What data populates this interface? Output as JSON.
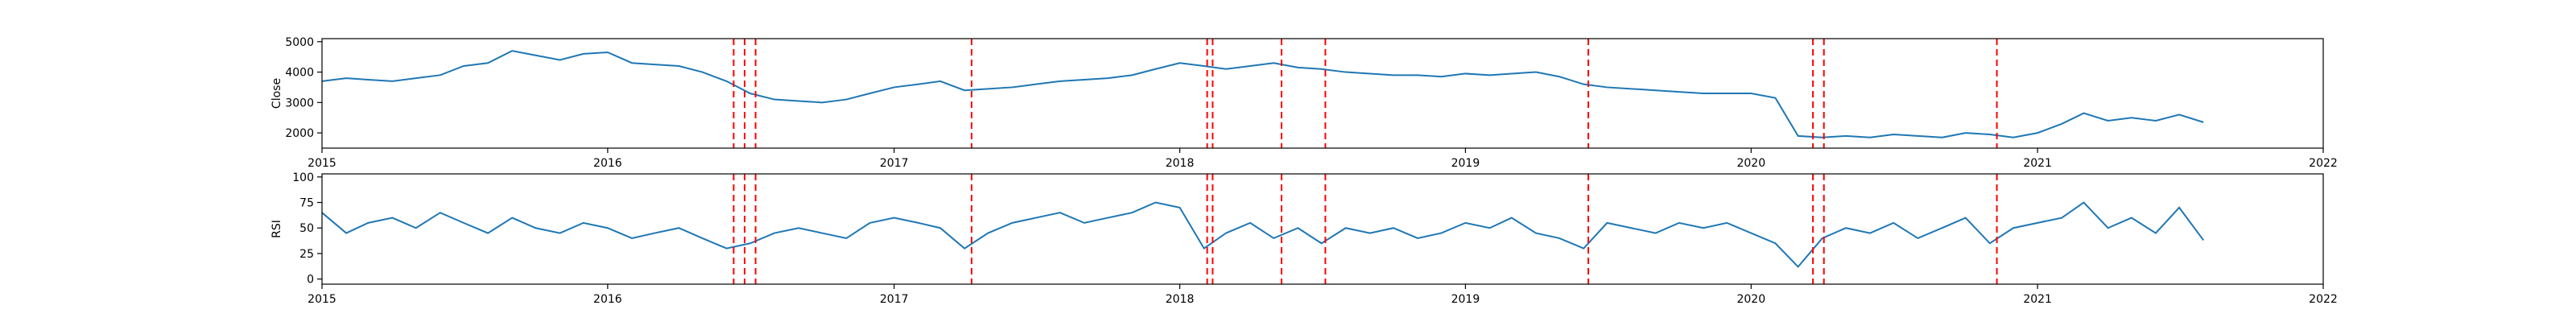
{
  "chart_data": [
    {
      "type": "line",
      "title": "",
      "xlabel": "",
      "ylabel": "Close",
      "xlim": [
        "2015-01-01",
        "2022-01-01"
      ],
      "ylim": [
        1500,
        5100
      ],
      "x_ticks": [
        "2015",
        "2016",
        "2017",
        "2018",
        "2019",
        "2020",
        "2021",
        "2022"
      ],
      "y_ticks": [
        2000,
        3000,
        4000,
        5000
      ],
      "line_color": "#1f77b4",
      "grid": false,
      "series": [
        {
          "x": [
            "2015-01-01",
            "2015-02-01",
            "2015-03-01",
            "2015-04-01",
            "2015-05-01",
            "2015-06-01",
            "2015-07-01",
            "2015-08-01",
            "2015-09-01",
            "2015-10-01",
            "2015-11-01",
            "2015-12-01",
            "2016-01-01",
            "2016-02-01",
            "2016-03-01",
            "2016-04-01",
            "2016-05-01",
            "2016-06-01",
            "2016-07-01",
            "2016-08-01",
            "2016-09-01",
            "2016-10-01",
            "2016-11-01",
            "2016-12-01",
            "2017-01-01",
            "2017-02-01",
            "2017-03-01",
            "2017-04-01",
            "2017-05-01",
            "2017-06-01",
            "2017-07-01",
            "2017-08-01",
            "2017-09-01",
            "2017-10-01",
            "2017-11-01",
            "2017-12-01",
            "2018-01-01",
            "2018-02-01",
            "2018-03-01",
            "2018-04-01",
            "2018-05-01",
            "2018-06-01",
            "2018-07-01",
            "2018-08-01",
            "2018-09-01",
            "2018-10-01",
            "2018-11-01",
            "2018-12-01",
            "2019-01-01",
            "2019-02-01",
            "2019-03-01",
            "2019-04-01",
            "2019-05-01",
            "2019-06-01",
            "2019-07-01",
            "2019-08-01",
            "2019-09-01",
            "2019-10-01",
            "2019-11-01",
            "2019-12-01",
            "2020-01-01",
            "2020-02-01",
            "2020-03-01",
            "2020-04-01",
            "2020-05-01",
            "2020-06-01",
            "2020-07-01",
            "2020-08-01",
            "2020-09-01",
            "2020-10-01",
            "2020-11-01",
            "2020-12-01",
            "2021-01-01",
            "2021-02-01",
            "2021-03-01",
            "2021-04-01",
            "2021-05-01",
            "2021-06-01",
            "2021-07-01",
            "2021-08-01"
          ],
          "values": [
            3700,
            3800,
            3750,
            3700,
            3800,
            3900,
            4200,
            4300,
            4700,
            4550,
            4400,
            4600,
            4650,
            4300,
            4250,
            4200,
            4000,
            3700,
            3300,
            3100,
            3050,
            3000,
            3100,
            3300,
            3500,
            3600,
            3700,
            3400,
            3450,
            3500,
            3600,
            3700,
            3750,
            3800,
            3900,
            4100,
            4300,
            4200,
            4100,
            4200,
            4300,
            4150,
            4100,
            4000,
            3950,
            3900,
            3900,
            3850,
            3950,
            3900,
            3950,
            4000,
            3850,
            3600,
            3500,
            3450,
            3400,
            3350,
            3300,
            3300,
            3300,
            3150,
            1900,
            1850,
            1900,
            1850,
            1950,
            1900,
            1850,
            2000,
            1950,
            1850,
            2000,
            2300,
            2650,
            2400,
            2500,
            2400,
            2600,
            2350
          ]
        }
      ]
    },
    {
      "type": "line",
      "title": "",
      "xlabel": "",
      "ylabel": "RSI",
      "xlim": [
        "2015-01-01",
        "2022-01-01"
      ],
      "ylim": [
        -5,
        103
      ],
      "x_ticks": [
        "2015",
        "2016",
        "2017",
        "2018",
        "2019",
        "2020",
        "2021",
        "2022"
      ],
      "y_ticks": [
        0,
        25,
        50,
        75,
        100
      ],
      "line_color": "#1f77b4",
      "grid": false,
      "series": [
        {
          "x": [
            "2015-01-01",
            "2015-02-01",
            "2015-03-01",
            "2015-04-01",
            "2015-05-01",
            "2015-06-01",
            "2015-07-01",
            "2015-08-01",
            "2015-09-01",
            "2015-10-01",
            "2015-11-01",
            "2015-12-01",
            "2016-01-01",
            "2016-02-01",
            "2016-03-01",
            "2016-04-01",
            "2016-05-01",
            "2016-06-01",
            "2016-07-01",
            "2016-08-01",
            "2016-09-01",
            "2016-10-01",
            "2016-11-01",
            "2016-12-01",
            "2017-01-01",
            "2017-02-01",
            "2017-03-01",
            "2017-04-01",
            "2017-05-01",
            "2017-06-01",
            "2017-07-01",
            "2017-08-01",
            "2017-09-01",
            "2017-10-01",
            "2017-11-01",
            "2017-12-01",
            "2018-01-01",
            "2018-02-01",
            "2018-03-01",
            "2018-04-01",
            "2018-05-01",
            "2018-06-01",
            "2018-07-01",
            "2018-08-01",
            "2018-09-01",
            "2018-10-01",
            "2018-11-01",
            "2018-12-01",
            "2019-01-01",
            "2019-02-01",
            "2019-03-01",
            "2019-04-01",
            "2019-05-01",
            "2019-06-01",
            "2019-07-01",
            "2019-08-01",
            "2019-09-01",
            "2019-10-01",
            "2019-11-01",
            "2019-12-01",
            "2020-01-01",
            "2020-02-01",
            "2020-03-01",
            "2020-04-01",
            "2020-05-01",
            "2020-06-01",
            "2020-07-01",
            "2020-08-01",
            "2020-09-01",
            "2020-10-01",
            "2020-11-01",
            "2020-12-01",
            "2021-01-01",
            "2021-02-01",
            "2021-03-01",
            "2021-04-01",
            "2021-05-01",
            "2021-06-01",
            "2021-07-01",
            "2021-08-01"
          ],
          "values": [
            65,
            45,
            55,
            60,
            50,
            65,
            55,
            45,
            60,
            50,
            45,
            55,
            50,
            40,
            45,
            50,
            40,
            30,
            35,
            45,
            50,
            45,
            40,
            55,
            60,
            55,
            50,
            30,
            45,
            55,
            60,
            65,
            55,
            60,
            65,
            75,
            70,
            30,
            45,
            55,
            40,
            50,
            35,
            50,
            45,
            50,
            40,
            45,
            55,
            50,
            60,
            45,
            40,
            30,
            55,
            50,
            45,
            55,
            50,
            55,
            45,
            35,
            12,
            40,
            50,
            45,
            55,
            40,
            50,
            60,
            35,
            50,
            55,
            60,
            75,
            50,
            60,
            45,
            70,
            38
          ]
        }
      ]
    }
  ],
  "event_markers": {
    "color": "#ff0000",
    "dates": [
      "2016-06-10",
      "2016-06-24",
      "2016-07-08",
      "2017-04-10",
      "2018-02-05",
      "2018-02-12",
      "2018-05-11",
      "2018-07-06",
      "2019-06-07",
      "2020-03-20",
      "2020-04-03",
      "2020-11-10"
    ]
  }
}
